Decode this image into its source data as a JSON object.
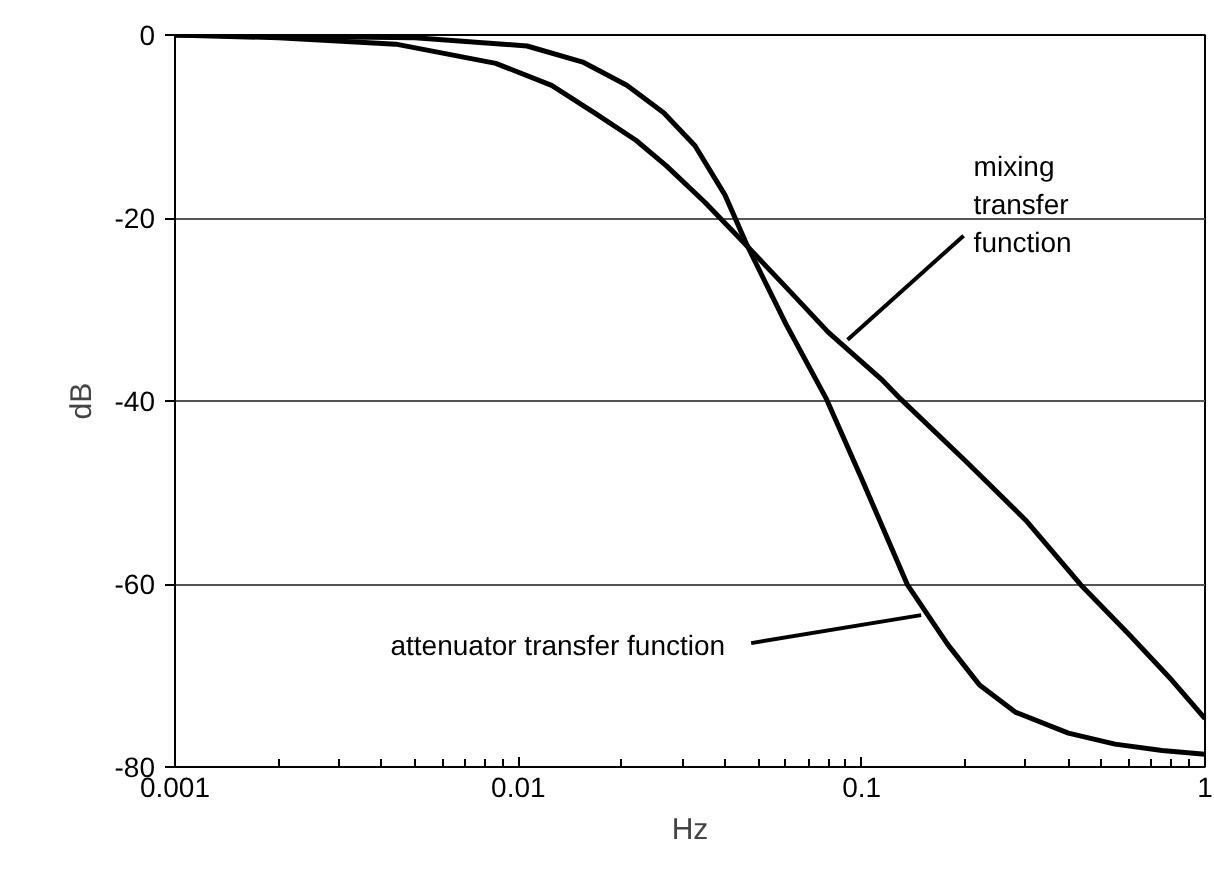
{
  "chart_data": {
    "type": "line",
    "xlabel": "Hz",
    "ylabel": "dB",
    "log": "x",
    "grid": "y",
    "marker": "none",
    "line_style": "solid",
    "xlim": [
      0.001,
      1
    ],
    "ylim": [
      -80,
      0
    ],
    "xticks": [
      {
        "value": 0.001,
        "label": "0.001"
      },
      {
        "value": 0.01,
        "label": "0.01"
      },
      {
        "value": 0.1,
        "label": "0.1"
      },
      {
        "value": 1,
        "label": "1"
      }
    ],
    "yticks": [
      0,
      -20,
      -40,
      -60,
      -80
    ],
    "series": [
      {
        "color": "#000000",
        "x": [
          0.001,
          0.002,
          0.0044,
          0.0086,
          0.0125,
          0.0168,
          0.022,
          0.027,
          0.035,
          0.0446,
          0.06,
          0.08,
          0.114,
          0.13,
          0.2,
          0.3,
          0.435,
          0.6,
          0.8,
          1.0
        ],
        "values": [
          0,
          -0.3,
          -1.0,
          -3.1,
          -5.5,
          -8.6,
          -11.5,
          -14.3,
          -18.3,
          -22.4,
          -27.5,
          -32.5,
          -37.6,
          -39.8,
          -46.5,
          -53.0,
          -60.1,
          -65.5,
          -70.5,
          -74.7
        ]
      },
      {
        "color": "#000000",
        "x": [
          0.001,
          0.005,
          0.0106,
          0.0155,
          0.0207,
          0.0265,
          0.0327,
          0.04,
          0.0464,
          0.06,
          0.079,
          0.1,
          0.136,
          0.178,
          0.22,
          0.28,
          0.4,
          0.547,
          0.75,
          1.0
        ],
        "values": [
          0,
          -0.3,
          -1.2,
          -3.0,
          -5.5,
          -8.5,
          -12.1,
          -17.5,
          -23.0,
          -31.5,
          -39.8,
          -48.5,
          -60.1,
          -66.6,
          -71.0,
          -74.0,
          -76.3,
          -77.5,
          -78.2,
          -78.6
        ]
      }
    ],
    "annotations": [
      {
        "text": "mixing\ntransfer\nfunction",
        "x": 0.091,
        "y": -33.3
      },
      {
        "text": "attenuator transfer function",
        "x": 0.149,
        "y": -63.4
      }
    ]
  }
}
